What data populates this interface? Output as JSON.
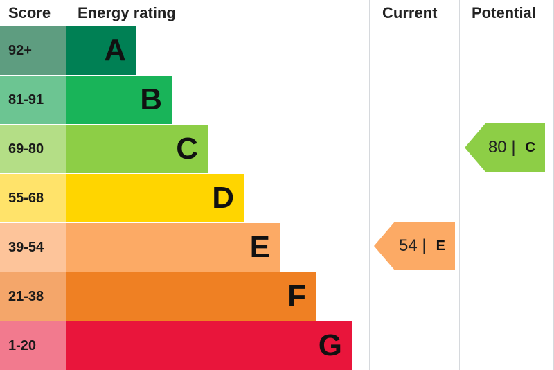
{
  "headers": {
    "score": "Score",
    "rating": "Energy rating",
    "current": "Current",
    "potential": "Potential"
  },
  "chart_data": {
    "type": "table",
    "bands": [
      {
        "letter": "A",
        "range": "92+",
        "color": "#008054",
        "score_color": "#5e9d80"
      },
      {
        "letter": "B",
        "range": "81-91",
        "color": "#19b459",
        "score_color": "#6cc592"
      },
      {
        "letter": "C",
        "range": "69-80",
        "color": "#8dce46",
        "score_color": "#b4de86"
      },
      {
        "letter": "D",
        "range": "55-68",
        "color": "#ffd500",
        "score_color": "#ffe36a"
      },
      {
        "letter": "E",
        "range": "39-54",
        "color": "#fcaa65",
        "score_color": "#fdc49a"
      },
      {
        "letter": "F",
        "range": "21-38",
        "color": "#ef8023",
        "score_color": "#f4a66a"
      },
      {
        "letter": "G",
        "range": "1-20",
        "color": "#e9153b",
        "score_color": "#f27a8e"
      }
    ],
    "current": {
      "value": "54",
      "separator": "|",
      "letter": "E",
      "color": "#fcaa65"
    },
    "potential": {
      "value": "80",
      "separator": "|",
      "letter": "C",
      "color": "#8dce46"
    }
  }
}
